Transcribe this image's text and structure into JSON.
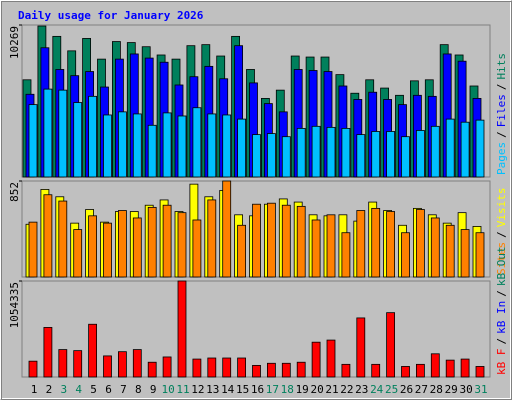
{
  "legend_separator": "/",
  "chart_data": [
    {
      "type": "bar",
      "title": "Daily usage for January 2026",
      "ylim": [
        0,
        10269
      ],
      "yticks": [
        10269
      ],
      "series": [
        {
          "name": "Hits",
          "color": "#00805c",
          "values": [
            6567,
            10199,
            9501,
            8523,
            9361,
            7964,
            9151,
            9082,
            8802,
            8243,
            7964,
            8872,
            8942,
            8173,
            9501,
            7265,
            5309,
            5868,
            8173,
            8104,
            8104,
            6916,
            5659,
            6567,
            6008,
            5519,
            6497,
            6567,
            8942,
            8243,
            6148
          ]
        },
        {
          "name": "Files",
          "color": "#0000ff",
          "values": [
            5589,
            8732,
            7265,
            6846,
            7126,
            6078,
            7964,
            8313,
            8034,
            7754,
            6217,
            6776,
            7475,
            6637,
            8872,
            6357,
            4960,
            4401,
            7265,
            7195,
            7126,
            6148,
            5239,
            5728,
            5239,
            4890,
            5519,
            5449,
            8313,
            7824,
            5309
          ]
        },
        {
          "name": "Pages",
          "color": "#00c0ff",
          "values": [
            4890,
            5938,
            5868,
            5030,
            5449,
            4191,
            4401,
            4261,
            3493,
            4331,
            4122,
            4680,
            4261,
            4191,
            3912,
            2864,
            2934,
            2724,
            3283,
            3423,
            3353,
            3283,
            2864,
            3074,
            3074,
            2724,
            3144,
            3423,
            3912,
            3702,
            3842
          ]
        }
      ]
    },
    {
      "type": "bar",
      "ylim": [
        0,
        852
      ],
      "yticks": [
        852
      ],
      "series": [
        {
          "name": "Visits",
          "color": "#ffff00",
          "values": [
            468,
            777,
            712,
            478,
            599,
            487,
            581,
            581,
            637,
            684,
            581,
            824,
            712,
            768,
            552,
            543,
            646,
            693,
            665,
            552,
            543,
            552,
            496,
            665,
            590,
            459,
            609,
            552,
            478,
            571,
            449
          ]
        },
        {
          "name": "Sites",
          "color": "#ff8000",
          "values": [
            487,
            730,
            674,
            421,
            543,
            478,
            590,
            524,
            618,
            637,
            571,
            506,
            684,
            852,
            459,
            646,
            655,
            637,
            627,
            506,
            552,
            393,
            590,
            609,
            581,
            393,
            599,
            524,
            459,
            421,
            393
          ]
        }
      ]
    },
    {
      "type": "bar",
      "ylim": [
        0,
        1054335
      ],
      "yticks": [
        1054335
      ],
      "categories": [
        "1",
        "2",
        "3",
        "4",
        "5",
        "6",
        "7",
        "8",
        "9",
        "10",
        "11",
        "12",
        "13",
        "14",
        "15",
        "16",
        "17",
        "18",
        "19",
        "20",
        "21",
        "22",
        "23",
        "24",
        "25",
        "26",
        "27",
        "28",
        "29",
        "30",
        "31"
      ],
      "category_colors": [
        "#000000",
        "#000000",
        "#00805c",
        "#00805c",
        "#000000",
        "#000000",
        "#000000",
        "#000000",
        "#000000",
        "#00805c",
        "#00805c",
        "#000000",
        "#000000",
        "#000000",
        "#000000",
        "#000000",
        "#00805c",
        "#00805c",
        "#000000",
        "#000000",
        "#000000",
        "#000000",
        "#000000",
        "#00805c",
        "#00805c",
        "#000000",
        "#000000",
        "#000000",
        "#000000",
        "#000000",
        "#00805c"
      ],
      "series": [
        {
          "name": "kB Out",
          "color": "#00805c",
          "values": [
            0,
            0,
            0,
            0,
            0,
            0,
            0,
            0,
            0,
            0,
            0,
            0,
            0,
            0,
            0,
            0,
            0,
            0,
            0,
            0,
            0,
            0,
            0,
            0,
            0,
            0,
            0,
            0,
            0,
            0,
            0
          ]
        },
        {
          "name": "kB In",
          "color": "#0000ff",
          "values": [
            0,
            0,
            0,
            0,
            0,
            0,
            0,
            0,
            0,
            0,
            0,
            0,
            0,
            0,
            0,
            0,
            0,
            0,
            0,
            0,
            0,
            0,
            0,
            0,
            0,
            0,
            0,
            0,
            0,
            0,
            0
          ]
        },
        {
          "name": "kB F",
          "color": "#ff0000",
          "values": [
            173790,
            544540,
            301240,
            289650,
            579300,
            231720,
            278060,
            301240,
            162200,
            220130,
            1054335,
            196960,
            208550,
            208550,
            208550,
            127450,
            150620,
            150620,
            162200,
            382340,
            405510,
            139030,
            648820,
            139030,
            706750,
            115860,
            139030,
            254890,
            185380,
            196960,
            115860
          ]
        }
      ]
    }
  ]
}
